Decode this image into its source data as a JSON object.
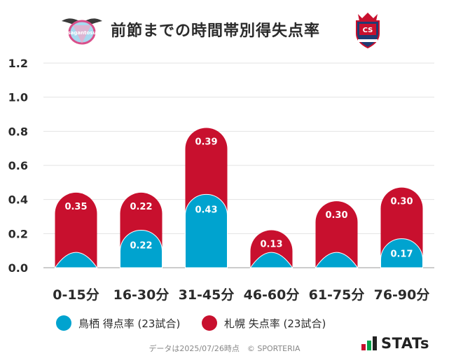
{
  "header": {
    "title": "前節までの時間帯別得失点率",
    "home_logo_text": "sagantosu",
    "away_logo_text": "CS"
  },
  "chart_data": {
    "type": "bar",
    "stacked": true,
    "title": "前節までの時間帯別得失点率",
    "categories": [
      "0-15分",
      "16-30分",
      "31-45分",
      "46-60分",
      "61-75分",
      "76-90分"
    ],
    "series": [
      {
        "name": "鳥栖 得点率 (23試合)",
        "color": "#00a3cf",
        "values": [
          0.09,
          0.22,
          0.43,
          0.09,
          0.09,
          0.17
        ],
        "labels": [
          "",
          "0.22",
          "0.43",
          "",
          "",
          "0.17"
        ]
      },
      {
        "name": "札幌 失点率 (23試合)",
        "color": "#c8102e",
        "values": [
          0.35,
          0.22,
          0.39,
          0.13,
          0.3,
          0.3
        ],
        "labels": [
          "0.35",
          "0.22",
          "0.39",
          "0.13",
          "0.30",
          "0.30"
        ]
      }
    ],
    "yticks": [
      "0.0",
      "0.2",
      "0.4",
      "0.6",
      "0.8",
      "1.0",
      "1.2"
    ],
    "ylim": [
      0,
      1.2
    ],
    "grid": true,
    "xlabel": "",
    "ylabel": ""
  },
  "legend": [
    {
      "label": "鳥栖 得点率 (23試合)",
      "color": "#00a3cf"
    },
    {
      "label": "札幌 失点率 (23試合)",
      "color": "#c8102e"
    }
  ],
  "footer": {
    "source": "データは2025/07/26時点　© SPORTERIA",
    "brand": "STATs"
  }
}
